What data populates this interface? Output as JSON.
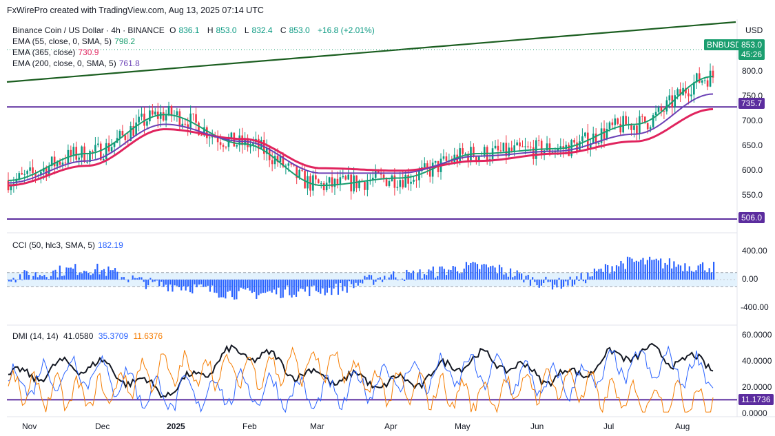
{
  "header": {
    "title": "FxWirePro created with TradingView.com, Aug 13, 2025 07:14 UTC"
  },
  "legend": {
    "symbol": "Binance Coin / US Dollar · 4h · BINANCE",
    "ohlc": {
      "o_label": "O",
      "o": "836.1",
      "h_label": "H",
      "h": "853.0",
      "l_label": "L",
      "l": "832.4",
      "c_label": "C",
      "c": "853.0",
      "change": "+16.8 (+2.01%)"
    },
    "ema55": {
      "label": "EMA (55, close, 0, SMA, 5)",
      "value": "798.2",
      "color": "#1a9e6f"
    },
    "ema365": {
      "label": "EMA (365, close)",
      "value": "730.9",
      "color": "#e0245e"
    },
    "ema200": {
      "label": "EMA (200, close, 0, SMA, 5)",
      "value": "761.8",
      "color": "#6a3fb5"
    }
  },
  "price_axis": {
    "currency": "USD",
    "ticks": [
      "800.0",
      "750.0",
      "700.0",
      "650.0",
      "600.0",
      "550.0"
    ],
    "last_price": "853.0",
    "countdown": "45:26",
    "symbol_badge": "BNBUSD",
    "level_high": "735.7",
    "level_low": "506.0"
  },
  "cci": {
    "label": "CCI (50, hlc3, SMA, 5)",
    "value": "182.19",
    "ticks": [
      "400.00",
      "0.00",
      "-400.00"
    ],
    "color": "#2962ff"
  },
  "dmi": {
    "label": "DMI (14, 14)",
    "adx": "41.0580",
    "plus_di": "35.3709",
    "minus_di": "11.6376",
    "adx_color": "#131722",
    "plus_color": "#2962ff",
    "minus_color": "#f57c00",
    "ticks": [
      "60.0000",
      "40.0000",
      "20.0000",
      "0.0000"
    ],
    "level": "11.1736"
  },
  "x_axis": [
    "Nov",
    "Dec",
    "2025",
    "Feb",
    "Mar",
    "Apr",
    "May",
    "Jun",
    "Jul",
    "Aug"
  ],
  "chart_data": [
    {
      "type": "line",
      "x": [
        "Nov",
        "Dec",
        "2025",
        "Feb",
        "Mar",
        "Apr",
        "May",
        "Jun",
        "Jul",
        "Aug"
      ],
      "series": [
        {
          "name": "EMA (55, close, 0, SMA, 5)",
          "values": [
            585,
            640,
            720,
            660,
            575,
            590,
            640,
            650,
            700,
            798
          ]
        },
        {
          "name": "EMA (365, close)",
          "values": [
            575,
            615,
            690,
            670,
            610,
            605,
            625,
            640,
            665,
            731
          ]
        },
        {
          "name": "EMA (200, close, 0, SMA, 5)",
          "values": [
            580,
            625,
            700,
            665,
            600,
            600,
            635,
            645,
            680,
            762
          ]
        }
      ],
      "price_levels": [
        735.7,
        506.0
      ],
      "last_price": 853.0,
      "ylim": [
        506,
        870
      ]
    },
    {
      "type": "bar",
      "x": [
        "Nov",
        "Dec",
        "2025",
        "Feb",
        "Mar",
        "Apr",
        "May",
        "Jun",
        "Jul",
        "Aug"
      ],
      "series": [
        {
          "name": "CCI (50, hlc3, SMA, 5)",
          "values": [
            40,
            150,
            -80,
            -200,
            -150,
            60,
            180,
            -60,
            250,
            182
          ]
        }
      ],
      "ylim": [
        -550,
        450
      ]
    },
    {
      "type": "line",
      "x": [
        "Nov",
        "Dec",
        "2025",
        "Feb",
        "Mar",
        "Apr",
        "May",
        "Jun",
        "Jul",
        "Aug"
      ],
      "series": [
        {
          "name": "ADX",
          "values": [
            30,
            40,
            20,
            50,
            30,
            25,
            45,
            30,
            50,
            41
          ]
        },
        {
          "name": "+DI",
          "values": [
            25,
            35,
            15,
            20,
            15,
            30,
            35,
            25,
            40,
            35
          ]
        },
        {
          "name": "-DI",
          "values": [
            20,
            15,
            35,
            35,
            40,
            20,
            15,
            25,
            12,
            12
          ]
        }
      ],
      "level": 11.1736,
      "ylim": [
        0,
        65
      ]
    }
  ]
}
